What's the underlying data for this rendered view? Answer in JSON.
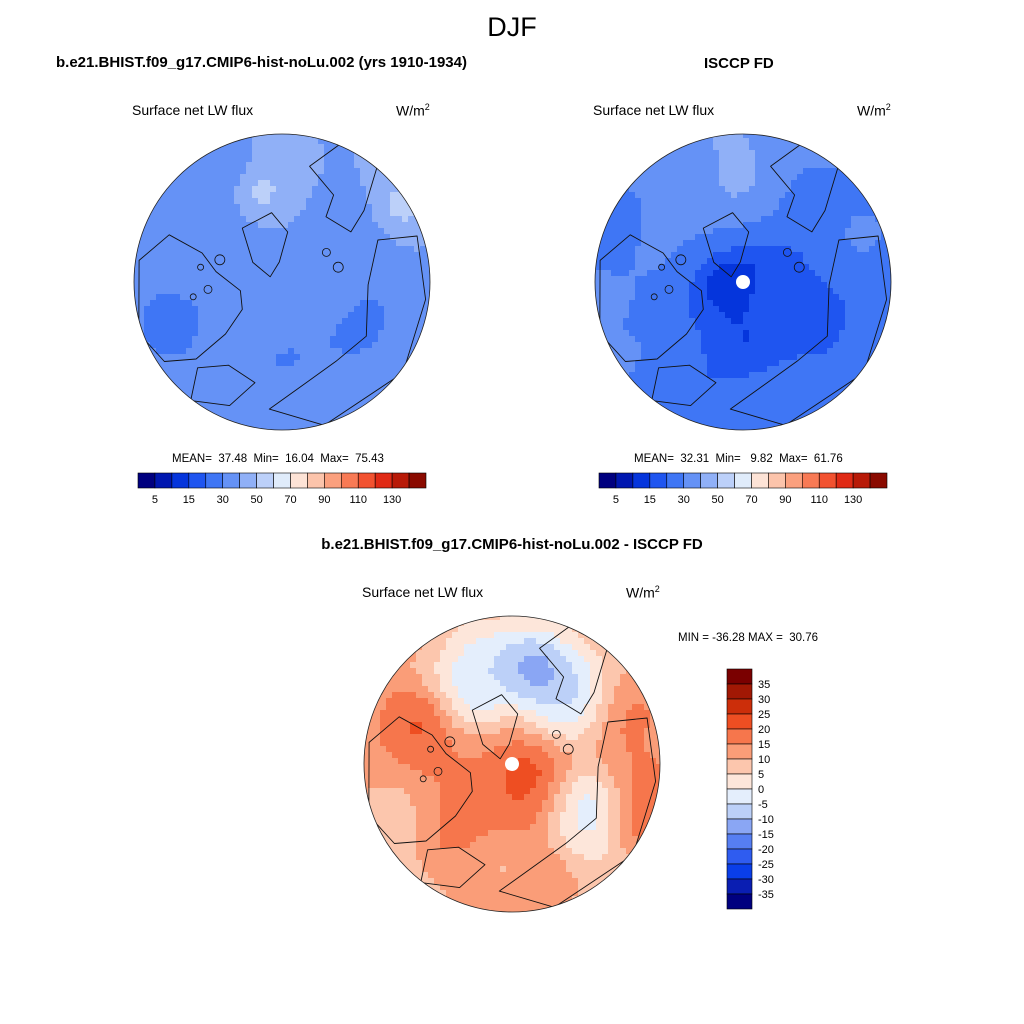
{
  "figure": {
    "season_title": "DJF"
  },
  "colors": {
    "abs_scale": [
      "#00007f",
      "#0017b0",
      "#0535dc",
      "#1f55f0",
      "#3f76f5",
      "#6592f6",
      "#90b0f7",
      "#bcd0f9",
      "#e0ecfb",
      "#fde3d6",
      "#fcc4ab",
      "#fba07e",
      "#f87a55",
      "#f25230",
      "#e02a15",
      "#b81a08",
      "#8a0a00"
    ],
    "diff_scale": [
      "#00007f",
      "#0a1eb2",
      "#0a3ee8",
      "#2f5cf0",
      "#567ef2",
      "#8aa6f4",
      "#bcd0f8",
      "#e4eefc",
      "#fde6da",
      "#fcc6ad",
      "#fa9d78",
      "#f6764c",
      "#ee4e22",
      "#cc2e0a",
      "#a11804",
      "#7a0000"
    ],
    "coast": "#111111",
    "missing": "#ffffff"
  },
  "panels": {
    "model": {
      "title": "b.e21.BHIST.f09_g17.CMIP6-hist-noLu.002 (yrs 1910-1934)",
      "variable": "Surface net LW flux",
      "units": "W/m",
      "units_sup": "2",
      "stats": "MEAN=  37.48  Min=  16.04  Max=  75.43"
    },
    "obs": {
      "title": "ISCCP FD",
      "variable": "Surface net LW flux",
      "units": "W/m",
      "units_sup": "2",
      "stats": "MEAN=  32.31  Min=   9.82  Max=  61.76"
    },
    "diff": {
      "title": "b.e21.BHIST.f09_g17.CMIP6-hist-noLu.002 - ISCCP FD",
      "variable": "Surface net LW flux",
      "units": "W/m",
      "units_sup": "2",
      "stats": "MIN = -36.28 MAX =  30.76"
    }
  },
  "colorbars": {
    "abs_ticks": [
      "5",
      "15",
      "30",
      "50",
      "70",
      "90",
      "110",
      "130"
    ],
    "diff_ticks": [
      "35",
      "30",
      "25",
      "20",
      "15",
      "10",
      "5",
      "0",
      "-5",
      "-10",
      "-15",
      "-20",
      "-25",
      "-30",
      "-35"
    ]
  },
  "map_blobs": {
    "model": [
      {
        "t": 0.0,
        "r": 0.55,
        "v": 45,
        "s": 0.35
      },
      {
        "t": 0.7,
        "r": 0.45,
        "v": 22,
        "s": 0.22
      },
      {
        "t": 0.9,
        "r": 0.55,
        "v": 28,
        "s": 0.25
      },
      {
        "t": 2.2,
        "r": 0.35,
        "v": 28,
        "s": 0.25
      },
      {
        "t": 2.9,
        "r": 0.55,
        "v": 26,
        "s": 0.22
      },
      {
        "t": 3.5,
        "r": 0.45,
        "v": 38,
        "s": 0.25
      },
      {
        "t": 4.0,
        "r": 0.75,
        "v": 38,
        "s": 0.2
      },
      {
        "t": 4.45,
        "r": 0.62,
        "v": 62,
        "s": 0.08
      },
      {
        "t": 4.8,
        "r": 0.72,
        "v": 48,
        "s": 0.18
      },
      {
        "t": 5.3,
        "r": 0.6,
        "v": 30,
        "s": 0.2
      },
      {
        "t": 5.55,
        "r": 0.85,
        "v": 48,
        "s": 0.15
      },
      {
        "t": 6.1,
        "r": 0.55,
        "v": 22,
        "s": 0.2
      },
      {
        "t": 0.3,
        "r": 0.85,
        "v": 26,
        "s": 0.18
      },
      {
        "t": 1.6,
        "r": 0.85,
        "v": 38,
        "s": 0.2
      },
      {
        "t": 0.0,
        "r": 0.0,
        "v": 42,
        "s": 0.3
      },
      {
        "t": 5.7,
        "r": 0.95,
        "v": 62,
        "s": 0.08
      }
    ],
    "obs": [
      {
        "t": 0.0,
        "r": 0.0,
        "v": 10,
        "s": 0.25
      },
      {
        "t": 1.0,
        "r": 0.3,
        "v": 12,
        "s": 0.22
      },
      {
        "t": 2.0,
        "r": 0.5,
        "v": 18,
        "s": 0.25
      },
      {
        "t": 0.4,
        "r": 0.7,
        "v": 22,
        "s": 0.22
      },
      {
        "t": 3.4,
        "r": 0.6,
        "v": 28,
        "s": 0.22
      },
      {
        "t": 4.3,
        "r": 0.55,
        "v": 38,
        "s": 0.22
      },
      {
        "t": 4.6,
        "r": 0.8,
        "v": 45,
        "s": 0.2
      },
      {
        "t": 5.2,
        "r": 0.7,
        "v": 30,
        "s": 0.2
      },
      {
        "t": 5.8,
        "r": 0.85,
        "v": 28,
        "s": 0.2
      },
      {
        "t": 2.8,
        "r": 0.85,
        "v": 35,
        "s": 0.2
      },
      {
        "t": 1.5,
        "r": 0.85,
        "v": 30,
        "s": 0.2
      },
      {
        "t": 0.9,
        "r": 0.75,
        "v": 20,
        "s": 0.2
      }
    ],
    "diff": [
      {
        "t": 0.0,
        "r": 0.0,
        "v": 24,
        "s": 0.28
      },
      {
        "t": 1.2,
        "r": 0.25,
        "v": 22,
        "s": 0.2
      },
      {
        "t": 0.6,
        "r": 0.5,
        "v": -8,
        "s": 0.18
      },
      {
        "t": 2.2,
        "r": 0.45,
        "v": 14,
        "s": 0.22
      },
      {
        "t": 3.1,
        "r": 0.6,
        "v": 16,
        "s": 0.22
      },
      {
        "t": 3.6,
        "r": 0.75,
        "v": 22,
        "s": 0.15
      },
      {
        "t": 4.3,
        "r": 0.55,
        "v": -12,
        "s": 0.2
      },
      {
        "t": 4.9,
        "r": 0.6,
        "v": -22,
        "s": 0.12
      },
      {
        "t": 5.4,
        "r": 0.5,
        "v": -10,
        "s": 0.2
      },
      {
        "t": 5.9,
        "r": 0.8,
        "v": 14,
        "s": 0.2
      },
      {
        "t": 0.2,
        "r": 0.9,
        "v": 18,
        "s": 0.2
      },
      {
        "t": 1.7,
        "r": 0.85,
        "v": 12,
        "s": 0.2
      },
      {
        "t": 2.7,
        "r": 0.9,
        "v": 8,
        "s": 0.2
      },
      {
        "t": 4.1,
        "r": 0.9,
        "v": 10,
        "s": 0.2
      }
    ]
  }
}
